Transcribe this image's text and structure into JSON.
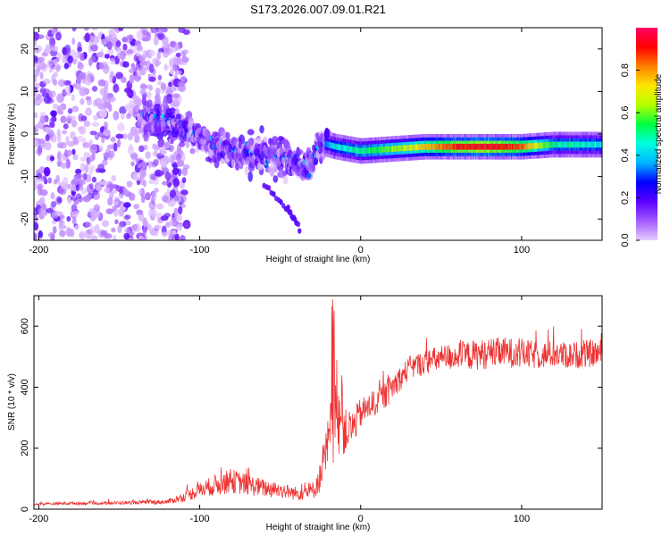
{
  "chart_data": [
    {
      "type": "heatmap",
      "title": "S173.2026.007.09.01.R21",
      "xlabel": "Height of straight line (km)",
      "ylabel": "Frequency (Hz)",
      "xlim": [
        -203,
        150
      ],
      "ylim": [
        -25,
        25
      ],
      "xticks": [
        -200,
        -100,
        0,
        100
      ],
      "yticks": [
        -20,
        -10,
        0,
        10,
        20
      ],
      "colorbar": {
        "label": "Normalized spectral amplitude",
        "range": [
          0,
          1
        ],
        "ticks": [
          0.0,
          0.2,
          0.4,
          0.6,
          0.8
        ],
        "tick_labels": [
          "0.0",
          "0.2",
          "0.4",
          "0.6",
          "0.8"
        ],
        "colormap": [
          "#e6ccff",
          "#a35cff",
          "#5a00ff",
          "#0000ff",
          "#00b4ff",
          "#00ffe0",
          "#00ff40",
          "#b4ff00",
          "#ffe600",
          "#ff8000",
          "#ff0000",
          "#ff0064"
        ]
      },
      "ridge": {
        "description_free_points": [
          {
            "x": -130,
            "freq": 4,
            "amp": 0.2
          },
          {
            "x": -110,
            "freq": 1,
            "amp": 0.25
          },
          {
            "x": -95,
            "freq": -2,
            "amp": 0.3
          },
          {
            "x": -80,
            "freq": -4,
            "amp": 0.3
          },
          {
            "x": -60,
            "freq": -5,
            "amp": 0.3
          },
          {
            "x": -45,
            "freq": -6,
            "amp": 0.3
          },
          {
            "x": -32,
            "freq": -8,
            "amp": 0.35
          },
          {
            "x": -25,
            "freq": -2,
            "amp": 0.3
          },
          {
            "x": -15,
            "freq": -3,
            "amp": 0.45
          },
          {
            "x": 0,
            "freq": -4,
            "amp": 0.5
          },
          {
            "x": 20,
            "freq": -3.5,
            "amp": 0.6
          },
          {
            "x": 40,
            "freq": -3,
            "amp": 0.75
          },
          {
            "x": 60,
            "freq": -3,
            "amp": 0.9
          },
          {
            "x": 80,
            "freq": -3,
            "amp": 0.95
          },
          {
            "x": 100,
            "freq": -3,
            "amp": 0.85
          },
          {
            "x": 120,
            "freq": -2.5,
            "amp": 0.5
          },
          {
            "x": 150,
            "freq": -2.5,
            "amp": 0.45
          }
        ],
        "secondary_branch": [
          {
            "x": -60,
            "freq": -12
          },
          {
            "x": -45,
            "freq": -18
          },
          {
            "x": -38,
            "freq": -22
          }
        ]
      }
    },
    {
      "type": "line",
      "title": "",
      "xlabel": "Height of straight line (km)",
      "ylabel": "SNR (10 * v/v)",
      "xlim": [
        -203,
        150
      ],
      "ylim": [
        0,
        700
      ],
      "xticks": [
        -200,
        -100,
        0,
        100
      ],
      "yticks": [
        0,
        200,
        400,
        600
      ],
      "series": [
        {
          "name": "SNR",
          "color": "#ee3333",
          "x": [
            -203,
            -180,
            -160,
            -140,
            -120,
            -110,
            -100,
            -90,
            -80,
            -70,
            -60,
            -50,
            -40,
            -30,
            -25,
            -20,
            -15,
            -10,
            -5,
            0,
            5,
            10,
            15,
            20,
            25,
            30,
            40,
            50,
            60,
            70,
            80,
            90,
            100,
            110,
            120,
            130,
            140,
            150
          ],
          "values": [
            15,
            18,
            18,
            20,
            22,
            35,
            55,
            70,
            80,
            70,
            60,
            55,
            45,
            50,
            90,
            180,
            300,
            230,
            250,
            300,
            320,
            340,
            360,
            390,
            420,
            450,
            470,
            480,
            490,
            490,
            495,
            500,
            495,
            490,
            495,
            490,
            495,
            500
          ],
          "spread": [
            8,
            10,
            10,
            12,
            15,
            30,
            50,
            70,
            80,
            70,
            60,
            50,
            45,
            60,
            100,
            200,
            350,
            150,
            120,
            100,
            90,
            90,
            90,
            90,
            80,
            80,
            80,
            90,
            90,
            100,
            100,
            100,
            100,
            90,
            90,
            90,
            90,
            90
          ]
        }
      ]
    }
  ]
}
